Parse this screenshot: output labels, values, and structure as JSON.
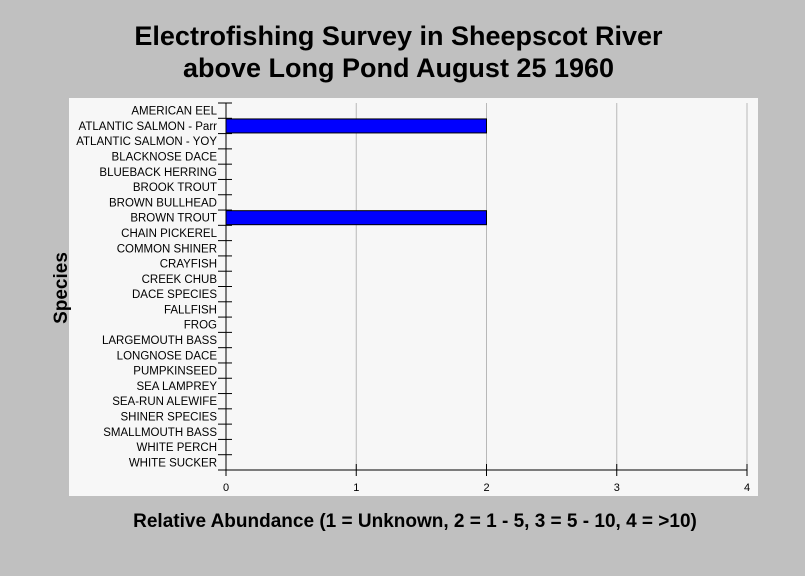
{
  "title_line1": "Electrofishing Survey in Sheepscot River",
  "title_line2": "above Long Pond August 25 1960",
  "chart_data": {
    "type": "bar",
    "orientation": "horizontal",
    "title": "Electrofishing Survey in Sheepscot River above Long Pond August 25 1960",
    "xlabel": "Relative Abundance (1 = Unknown, 2 = 1 - 5, 3 = 5 - 10, 4 = >10)",
    "ylabel": "Species",
    "xlim": [
      0,
      4
    ],
    "xticks": [
      "0",
      "1",
      "2",
      "3",
      "4"
    ],
    "grid": "vertical",
    "bar_color": "#0000ff",
    "categories": [
      "AMERICAN EEL",
      "ATLANTIC SALMON - Parr",
      "ATLANTIC SALMON - YOY",
      "BLACKNOSE DACE",
      "BLUEBACK HERRING",
      "BROOK TROUT",
      "BROWN BULLHEAD",
      "BROWN TROUT",
      "CHAIN PICKEREL",
      "COMMON SHINER",
      "CRAYFISH",
      "CREEK CHUB",
      "DACE SPECIES",
      "FALLFISH",
      "FROG",
      "LARGEMOUTH BASS",
      "LONGNOSE DACE",
      "PUMPKINSEED",
      "SEA LAMPREY",
      "SEA-RUN ALEWIFE",
      "SHINER SPECIES",
      "SMALLMOUTH BASS",
      "WHITE PERCH",
      "WHITE SUCKER"
    ],
    "values": [
      0,
      2,
      0,
      0,
      0,
      0,
      0,
      2,
      0,
      0,
      0,
      0,
      0,
      0,
      0,
      0,
      0,
      0,
      0,
      0,
      0,
      0,
      0,
      0
    ]
  }
}
